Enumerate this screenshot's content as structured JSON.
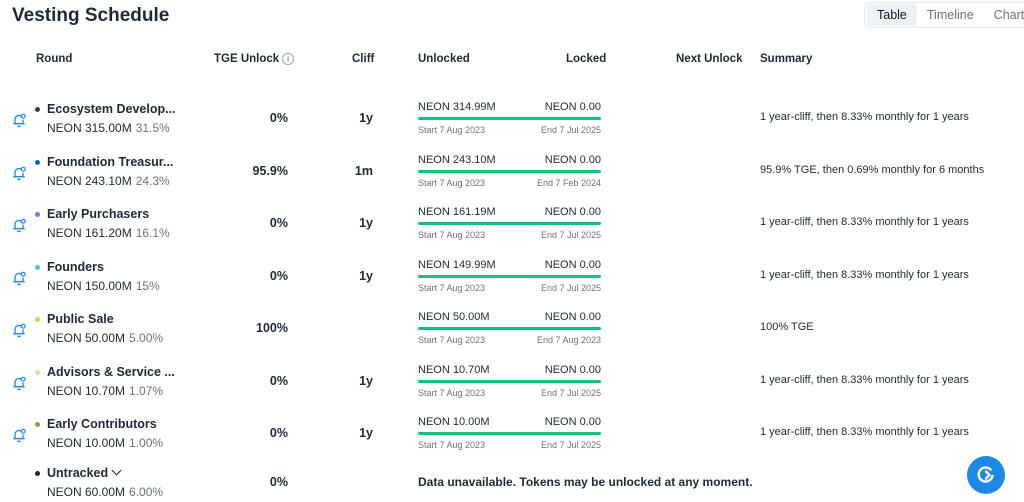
{
  "page": {
    "title": "Vesting Schedule",
    "tabs": [
      {
        "label": "Table",
        "active": true
      },
      {
        "label": "Timeline",
        "active": false
      },
      {
        "label": "Chart",
        "active": false
      }
    ]
  },
  "columns": {
    "round": "Round",
    "tge_unlock": "TGE Unlock",
    "cliff": "Cliff",
    "unlocked": "Unlocked",
    "locked": "Locked",
    "next_unlock": "Next Unlock",
    "summary": "Summary"
  },
  "colors": {
    "progress": "#10c17a",
    "accent": "#1e88e5"
  },
  "rows": [
    {
      "name": "Ecosystem Develop...",
      "dot_color": "#374151",
      "amount": "NEON 315.00M",
      "percent": "31.5%",
      "tge": "0%",
      "cliff": "1y",
      "unlocked": "NEON 314.99M",
      "locked": "NEON 0.00",
      "start": "Start 7 Aug 2023",
      "end": "End 7 Jul 2025",
      "summary": "1 year-cliff, then 8.33% monthly for 1 years"
    },
    {
      "name": "Foundation Treasur...",
      "dot_color": "#0c6ba8",
      "amount": "NEON 243.10M",
      "percent": "24.3%",
      "tge": "95.9%",
      "cliff": "1m",
      "unlocked": "NEON 243.10M",
      "locked": "NEON 0.00",
      "start": "Start 7 Aug 2023",
      "end": "End 7 Feb 2024",
      "summary": "95.9% TGE, then 0.69% monthly for 6 months"
    },
    {
      "name": "Early Purchasers",
      "dot_color": "#8b6fd6",
      "amount": "NEON 161.20M",
      "percent": "16.1%",
      "tge": "0%",
      "cliff": "1y",
      "unlocked": "NEON 161.19M",
      "locked": "NEON 0.00",
      "start": "Start 7 Aug 2023",
      "end": "End 7 Jul 2025",
      "summary": "1 year-cliff, then 8.33% monthly for 1 years"
    },
    {
      "name": "Founders",
      "dot_color": "#5fb7ea",
      "amount": "NEON 150.00M",
      "percent": "15%",
      "tge": "0%",
      "cliff": "1y",
      "unlocked": "NEON 149.99M",
      "locked": "NEON 0.00",
      "start": "Start 7 Aug 2023",
      "end": "End 7 Jul 2025",
      "summary": "1 year-cliff, then 8.33% monthly for 1 years"
    },
    {
      "name": "Public Sale",
      "dot_color": "#d6cf5a",
      "amount": "NEON 50.00M",
      "percent": "5.00%",
      "tge": "100%",
      "cliff": "",
      "unlocked": "NEON 50.00M",
      "locked": "NEON 0.00",
      "start": "Start 7 Aug 2023",
      "end": "End 7 Aug 2023",
      "summary": "100% TGE"
    },
    {
      "name": "Advisors & Service ...",
      "dot_color": "#cfe3a8",
      "amount": "NEON 10.70M",
      "percent": "1.07%",
      "tge": "0%",
      "cliff": "1y",
      "unlocked": "NEON 10.70M",
      "locked": "NEON 0.00",
      "start": "Start 7 Aug 2023",
      "end": "End 7 Jul 2025",
      "summary": "1 year-cliff, then 8.33% monthly for 1 years"
    },
    {
      "name": "Early Contributors",
      "dot_color": "#8a9a5b",
      "amount": "NEON 10.00M",
      "percent": "1.00%",
      "tge": "0%",
      "cliff": "1y",
      "unlocked": "NEON 10.00M",
      "locked": "NEON 0.00",
      "start": "Start 7 Aug 2023",
      "end": "End 7 Jul 2025",
      "summary": "1 year-cliff, then 8.33% monthly for 1 years"
    }
  ],
  "untracked": {
    "name": "Untracked",
    "dot_color": "#1f2937",
    "amount": "NEON 60.00M",
    "percent": "6.00%",
    "tge": "0%",
    "message": "Data unavailable. Tokens may be unlocked at any moment."
  }
}
